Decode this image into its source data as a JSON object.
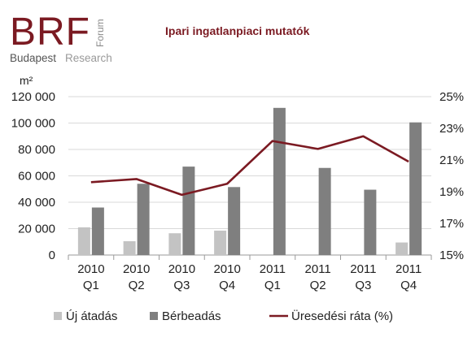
{
  "logo": {
    "main": "BRF",
    "vertical": "Forum",
    "city": "Budapest",
    "sub": "Research"
  },
  "chart_data": {
    "type": "bar",
    "title": "Ipari ingatlanpiaci mutatók",
    "y_unit_label": "m²",
    "categories": [
      [
        "2010",
        "Q1"
      ],
      [
        "2010",
        "Q2"
      ],
      [
        "2010",
        "Q3"
      ],
      [
        "2010",
        "Q4"
      ],
      [
        "2011",
        "Q1"
      ],
      [
        "2011",
        "Q2"
      ],
      [
        "2011",
        "Q3"
      ],
      [
        "2011",
        "Q4"
      ]
    ],
    "ylim": [
      0,
      120000
    ],
    "yticks": [
      "0",
      "20 000",
      "40 000",
      "60 000",
      "80 000",
      "100 000",
      "120 000"
    ],
    "y2lim": [
      15,
      25
    ],
    "y2ticks": [
      "15%",
      "17%",
      "19%",
      "21%",
      "23%",
      "25%"
    ],
    "grid": true,
    "legend_position": "bottom",
    "series": [
      {
        "name": "Új átadás",
        "type": "bar",
        "axis": "left",
        "color": "#c3c3c3",
        "values": [
          21000,
          10500,
          16500,
          18500,
          0,
          0,
          0,
          9500
        ]
      },
      {
        "name": "Bérbeadás",
        "type": "bar",
        "axis": "left",
        "color": "#7f7f7f",
        "values": [
          36000,
          54000,
          67000,
          51500,
          111500,
          66000,
          49500,
          100500
        ]
      },
      {
        "name": "Üresedési ráta (%)",
        "type": "line",
        "axis": "right",
        "color": "#7b1a22",
        "values": [
          19.6,
          19.8,
          18.8,
          19.5,
          22.2,
          21.7,
          22.5,
          20.9
        ]
      }
    ]
  }
}
